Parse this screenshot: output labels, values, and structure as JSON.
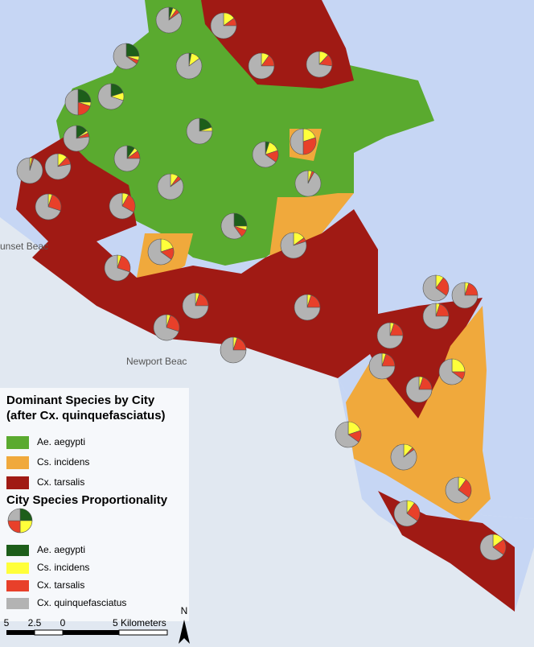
{
  "map": {
    "place_labels": [
      "unset Beac",
      "Newport Beac"
    ],
    "pies": [
      [
        5,
        5,
        5,
        85
      ],
      [
        0,
        15,
        10,
        75
      ],
      [
        25,
        5,
        5,
        65
      ],
      [
        3,
        12,
        0,
        85
      ],
      [
        0,
        10,
        15,
        75
      ],
      [
        0,
        12,
        15,
        73
      ],
      [
        25,
        5,
        20,
        50
      ],
      [
        20,
        10,
        0,
        70
      ],
      [
        20,
        5,
        0,
        75
      ],
      [
        15,
        3,
        5,
        77
      ],
      [
        10,
        5,
        10,
        75
      ],
      [
        5,
        15,
        15,
        65
      ],
      [
        0,
        20,
        30,
        50
      ],
      [
        0,
        3,
        2,
        95
      ],
      [
        0,
        12,
        10,
        78
      ],
      [
        0,
        10,
        5,
        85
      ],
      [
        0,
        5,
        3,
        92
      ],
      [
        0,
        5,
        25,
        70
      ],
      [
        0,
        8,
        25,
        67
      ],
      [
        25,
        5,
        10,
        60
      ],
      [
        0,
        15,
        5,
        80
      ],
      [
        0,
        20,
        15,
        65
      ],
      [
        0,
        5,
        25,
        70
      ],
      [
        0,
        5,
        20,
        75
      ],
      [
        0,
        5,
        20,
        75
      ],
      [
        0,
        5,
        25,
        70
      ],
      [
        0,
        5,
        20,
        75
      ],
      [
        0,
        10,
        25,
        65
      ],
      [
        0,
        5,
        20,
        75
      ],
      [
        0,
        5,
        20,
        75
      ],
      [
        0,
        5,
        20,
        75
      ],
      [
        0,
        5,
        20,
        75
      ],
      [
        0,
        5,
        20,
        75
      ],
      [
        0,
        25,
        10,
        65
      ],
      [
        0,
        20,
        15,
        65
      ],
      [
        0,
        12,
        3,
        85
      ],
      [
        0,
        10,
        25,
        65
      ],
      [
        0,
        10,
        25,
        65
      ],
      [
        0,
        15,
        20,
        65
      ]
    ]
  },
  "legend": {
    "dominant_title": "Dominant Species by City",
    "dominant_subtitle": "(after Cx. quinquefasciatus)",
    "dominant": [
      {
        "name": "Ae. aegypti",
        "color": "#5aaa2f"
      },
      {
        "name": "Cs. incidens",
        "color": "#f0a93c"
      },
      {
        "name": "Cx. tarsalis",
        "color": "#a01a14"
      }
    ],
    "proportion_title": "City Species Proportionality",
    "species": [
      {
        "name": "Ae. aegypti",
        "color": "#1d5e1a"
      },
      {
        "name": "Cs. incidens",
        "color": "#ffff3a"
      },
      {
        "name": "Cx. tarsalis",
        "color": "#e8402a"
      },
      {
        "name": "Cx. quinquefasciatus",
        "color": "#b3b3b3"
      }
    ]
  },
  "scale_bar": {
    "labels": [
      "5",
      "2.5",
      "0",
      "5 Kilometers"
    ],
    "north": "N"
  }
}
